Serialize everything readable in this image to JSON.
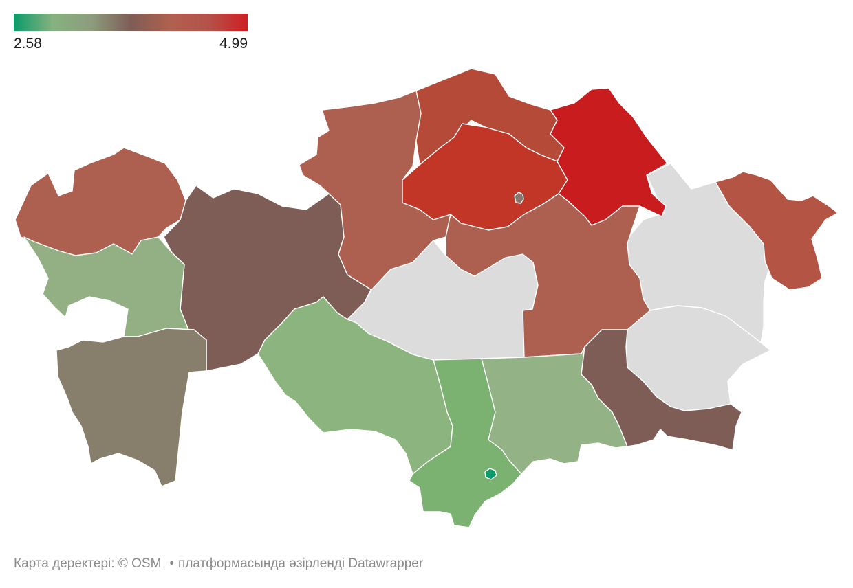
{
  "legend": {
    "min_label": "2.58",
    "max_label": "4.99",
    "colors": [
      "#0a9b6b",
      "#86b27f",
      "#8d9c7d",
      "#7e5d57",
      "#b0604e",
      "#b4524a",
      "#cf1f22"
    ]
  },
  "colors": {
    "no_data": "#dcdcdc",
    "border": "#ffffff"
  },
  "regions": [
    {
      "id": "west-kazakhstan",
      "color": "#ad6050"
    },
    {
      "id": "aktobe",
      "color": "#7e5d57"
    },
    {
      "id": "kostanay",
      "color": "#ad6050"
    },
    {
      "id": "north-kazakhstan",
      "color": "#b64a38"
    },
    {
      "id": "akmola",
      "color": "#c13627"
    },
    {
      "id": "astana",
      "color": "#8c756d"
    },
    {
      "id": "pavlodar",
      "color": "#c91c1f"
    },
    {
      "id": "karaganda",
      "color": "#ad6050"
    },
    {
      "id": "east-kazakhstan",
      "color": "#b45444"
    },
    {
      "id": "abai",
      "color": "#dcdcdc"
    },
    {
      "id": "ulytau",
      "color": "#dcdcdc"
    },
    {
      "id": "zhetysu",
      "color": "#dcdcdc"
    },
    {
      "id": "atyrau",
      "color": "#93b085"
    },
    {
      "id": "mangystau",
      "color": "#877f6c"
    },
    {
      "id": "kyzylorda",
      "color": "#8cb47e"
    },
    {
      "id": "turkistan",
      "color": "#7cb271"
    },
    {
      "id": "shymkent",
      "color": "#0a9b6b"
    },
    {
      "id": "zhambyl",
      "color": "#93b286"
    },
    {
      "id": "almaty-region",
      "color": "#7e5d57"
    }
  ],
  "footer": {
    "data_credit": "Карта деректері: © OSM",
    "separator": "•",
    "platform_credit": "платформасында әзірленді Datawrapper"
  }
}
